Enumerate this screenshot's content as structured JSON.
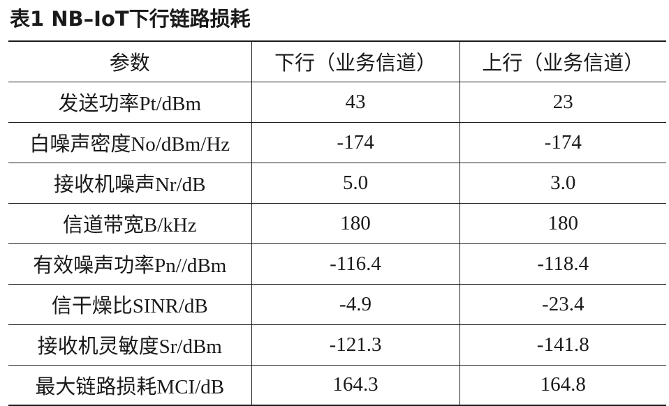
{
  "caption": "表1 NB–IoT下行链路损耗",
  "table": {
    "headers": [
      "参数",
      "下行（业务信道）",
      "上行（业务信道）"
    ],
    "rows": [
      {
        "param": "发送功率Pt/dBm",
        "downlink": "43",
        "uplink": "23"
      },
      {
        "param": "白噪声密度No/dBm/Hz",
        "downlink": "-174",
        "uplink": "-174"
      },
      {
        "param": "接收机噪声Nr/dB",
        "downlink": "5.0",
        "uplink": "3.0"
      },
      {
        "param": "信道带宽B/kHz",
        "downlink": "180",
        "uplink": "180"
      },
      {
        "param": "有效噪声功率Pn//dBm",
        "downlink": "-116.4",
        "uplink": "-118.4"
      },
      {
        "param": "信干燥比SINR/dB",
        "downlink": "-4.9",
        "uplink": "-23.4"
      },
      {
        "param": "接收机灵敏度Sr/dBm",
        "downlink": "-121.3",
        "uplink": "-141.8"
      },
      {
        "param": "最大链路损耗MCI/dB",
        "downlink": "164.3",
        "uplink": "164.8"
      }
    ]
  }
}
